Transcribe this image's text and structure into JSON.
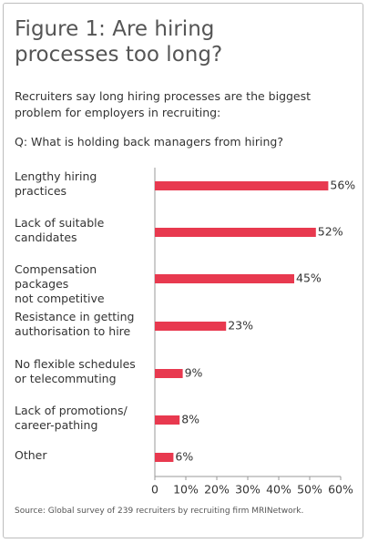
{
  "chart_data": {
    "type": "barh",
    "title": "Figure 1: Are hiring processes too long?",
    "subtitle": "Recruiters say long hiring processes are the biggest problem for employers in recruiting:",
    "question": "Q: What is holding back managers from hiring?",
    "source": "Source: Global survey of 239 recruiters by recruiting firm MRINetwork.",
    "categories": [
      "Lengthy hiring\npractices",
      "Lack of suitable\ncandidates",
      "Compensation packages\nnot competitive",
      "Resistance in getting\nauthorisation to hire",
      "No flexible schedules\nor telecommuting",
      "Lack of promotions/\ncareer-pathing",
      "Other"
    ],
    "values": [
      56,
      52,
      45,
      23,
      9,
      8,
      6
    ],
    "value_labels": [
      "56%",
      "52%",
      "45%",
      "23%",
      "9%",
      "8%",
      "6%"
    ],
    "color": "#e8394f",
    "xlim": [
      0,
      60
    ],
    "xticks": [
      0,
      {
        "value": 10,
        "label": "10%"
      },
      {
        "value": 20,
        "label": "20%"
      },
      {
        "value": 30,
        "label": "30%"
      },
      {
        "value": 40,
        "label": "40%"
      },
      {
        "value": 50,
        "label": "50%"
      },
      {
        "value": 60,
        "label": "60%"
      }
    ]
  }
}
